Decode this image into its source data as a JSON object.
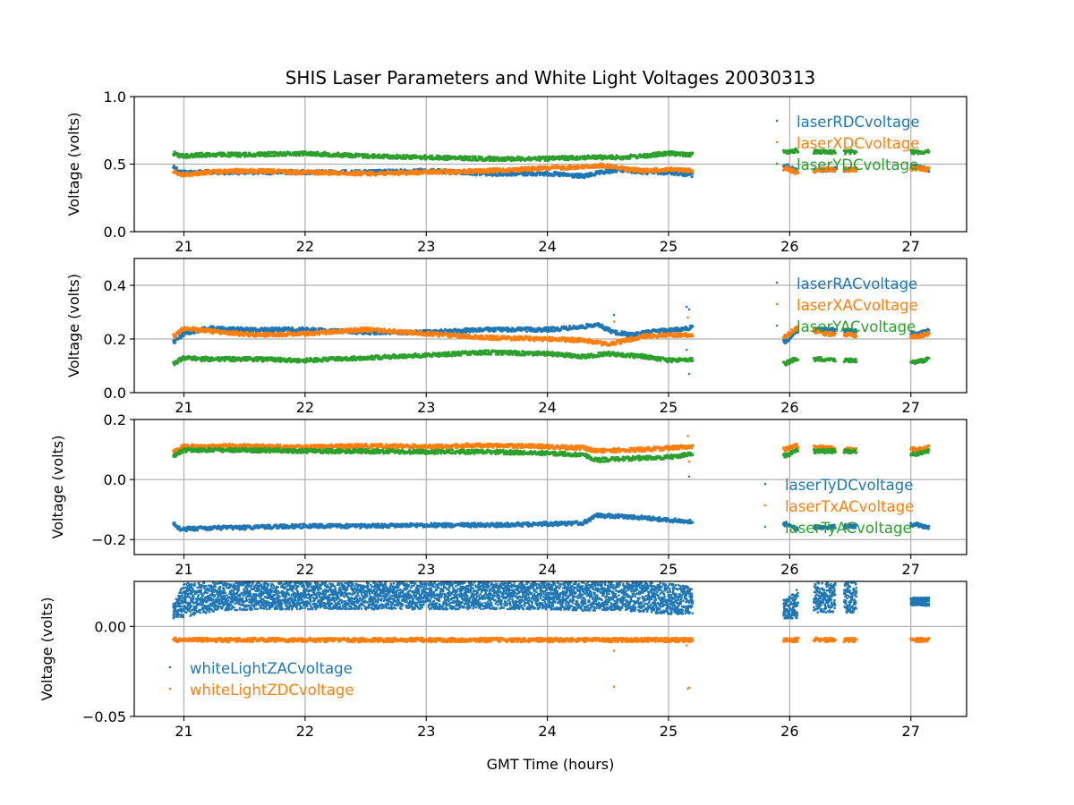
{
  "chart_data": {
    "type": "scatter",
    "title": "SHIS Laser Parameters and White Light Voltages 20030313",
    "xlabel": "GMT Time (hours)",
    "xlim": [
      20.59,
      27.46
    ],
    "xticks": [
      21,
      22,
      23,
      24,
      25,
      26,
      27
    ],
    "xtick_labels": [
      "21",
      "22",
      "23",
      "24",
      "25",
      "26",
      "27"
    ],
    "grid": true,
    "data_segments_hours": [
      [
        20.9,
        25.2
      ],
      [
        25.95,
        26.07
      ],
      [
        26.2,
        26.38
      ],
      [
        26.45,
        26.55
      ],
      [
        27.0,
        27.15
      ]
    ],
    "panels": [
      {
        "ylabel": "Voltage (volts)",
        "ylim": [
          0.0,
          1.0
        ],
        "yticks": [
          0.0,
          0.5,
          1.0
        ],
        "ytick_labels": [
          "0.0",
          "0.5",
          "1.0"
        ],
        "legend_position": "upper-right",
        "series": [
          {
            "name": "laserRDCvoltage",
            "color": "#1f77b4",
            "x": [
              20.92,
              20.97,
              21.2,
              21.5,
              22.0,
              22.5,
              23.0,
              23.5,
              24.0,
              24.3,
              24.4,
              24.6,
              24.8,
              25.0,
              25.2,
              25.97,
              26.05,
              26.3,
              26.5,
              27.05,
              27.15
            ],
            "y": [
              0.48,
              0.44,
              0.44,
              0.44,
              0.44,
              0.44,
              0.45,
              0.43,
              0.43,
              0.41,
              0.43,
              0.46,
              0.44,
              0.44,
              0.42,
              0.49,
              0.45,
              0.46,
              0.46,
              0.48,
              0.46
            ]
          },
          {
            "name": "laserXDCvoltage",
            "color": "#ff7f0e",
            "x": [
              20.92,
              20.97,
              21.2,
              21.5,
              22.0,
              22.5,
              23.0,
              23.5,
              24.0,
              24.3,
              24.45,
              24.6,
              24.8,
              25.0,
              25.2,
              25.97,
              26.05,
              26.3,
              26.5,
              27.05,
              27.15
            ],
            "y": [
              0.45,
              0.42,
              0.44,
              0.45,
              0.44,
              0.43,
              0.44,
              0.45,
              0.47,
              0.48,
              0.49,
              0.47,
              0.45,
              0.46,
              0.45,
              0.47,
              0.44,
              0.46,
              0.46,
              0.47,
              0.46
            ]
          },
          {
            "name": "laserYDCvoltage",
            "color": "#2ca02c",
            "x": [
              20.92,
              20.97,
              21.2,
              21.5,
              22.0,
              22.5,
              23.0,
              23.5,
              24.0,
              24.3,
              24.6,
              24.8,
              25.0,
              25.2,
              25.97,
              26.05,
              26.3,
              26.5,
              27.05,
              27.15
            ],
            "y": [
              0.58,
              0.56,
              0.57,
              0.57,
              0.58,
              0.56,
              0.55,
              0.54,
              0.54,
              0.55,
              0.55,
              0.56,
              0.58,
              0.57,
              0.59,
              0.6,
              0.59,
              0.59,
              0.59,
              0.59
            ]
          }
        ]
      },
      {
        "ylabel": "Voltage (volts)",
        "ylim": [
          0.0,
          0.5
        ],
        "yticks": [
          0.0,
          0.2,
          0.4
        ],
        "ytick_labels": [
          "0.0",
          "0.2",
          "0.4"
        ],
        "legend_position": "upper-right",
        "series": [
          {
            "name": "laserRACvoltage",
            "color": "#1f77b4",
            "x": [
              20.92,
              21.0,
              21.2,
              21.5,
              22.0,
              22.5,
              23.0,
              23.5,
              24.0,
              24.3,
              24.4,
              24.55,
              24.7,
              24.9,
              25.1,
              25.2,
              25.97,
              26.05,
              26.3,
              26.5,
              27.05,
              27.15
            ],
            "y": [
              0.19,
              0.22,
              0.24,
              0.235,
              0.235,
              0.225,
              0.225,
              0.235,
              0.235,
              0.245,
              0.255,
              0.225,
              0.215,
              0.23,
              0.235,
              0.245,
              0.19,
              0.23,
              0.235,
              0.23,
              0.22,
              0.23
            ],
            "outliers": [
              {
                "x": 24.55,
                "y": 0.29
              },
              {
                "x": 25.15,
                "y": 0.32
              },
              {
                "x": 25.17,
                "y": 0.31
              }
            ]
          },
          {
            "name": "laserXACvoltage",
            "color": "#ff7f0e",
            "x": [
              20.92,
              21.0,
              21.3,
              21.6,
              22.0,
              22.5,
              23.0,
              23.5,
              24.0,
              24.3,
              24.5,
              24.6,
              24.8,
              25.0,
              25.2,
              25.97,
              26.05,
              26.3,
              26.5,
              27.05,
              27.15
            ],
            "y": [
              0.21,
              0.24,
              0.225,
              0.215,
              0.22,
              0.235,
              0.22,
              0.205,
              0.2,
              0.195,
              0.18,
              0.19,
              0.21,
              0.215,
              0.215,
              0.21,
              0.24,
              0.22,
              0.215,
              0.21,
              0.22
            ],
            "outliers": [
              {
                "x": 24.55,
                "y": 0.265
              },
              {
                "x": 25.16,
                "y": 0.28
              }
            ]
          },
          {
            "name": "laserYACvoltage",
            "color": "#2ca02c",
            "x": [
              20.92,
              21.0,
              21.2,
              21.6,
              22.0,
              22.5,
              23.0,
              23.5,
              24.0,
              24.3,
              24.5,
              24.8,
              25.0,
              25.2,
              25.97,
              26.05,
              26.3,
              26.5,
              27.05,
              27.15
            ],
            "y": [
              0.11,
              0.13,
              0.125,
              0.125,
              0.12,
              0.13,
              0.14,
              0.15,
              0.145,
              0.135,
              0.145,
              0.135,
              0.12,
              0.125,
              0.11,
              0.125,
              0.125,
              0.12,
              0.115,
              0.125
            ],
            "outliers": [
              {
                "x": 25.15,
                "y": 0.16
              },
              {
                "x": 25.17,
                "y": 0.07
              }
            ]
          }
        ]
      },
      {
        "ylabel": "Voltage (volts)",
        "ylim": [
          -0.25,
          0.2
        ],
        "yticks": [
          -0.2,
          0.0,
          0.2
        ],
        "ytick_labels": [
          "−0.2",
          "0.0",
          "0.2"
        ],
        "legend_position": "lower-right",
        "series": [
          {
            "name": "laserTyDCvoltage",
            "color": "#1f77b4",
            "x": [
              20.92,
              20.97,
              21.2,
              21.5,
              22.0,
              22.5,
              23.0,
              23.5,
              24.0,
              24.3,
              24.4,
              24.6,
              24.8,
              25.0,
              25.2,
              25.97,
              26.05,
              26.3,
              26.5,
              27.05,
              27.15
            ],
            "y": [
              -0.15,
              -0.165,
              -0.162,
              -0.16,
              -0.155,
              -0.155,
              -0.152,
              -0.152,
              -0.148,
              -0.145,
              -0.12,
              -0.122,
              -0.128,
              -0.135,
              -0.142,
              -0.148,
              -0.162,
              -0.158,
              -0.155,
              -0.15,
              -0.162
            ]
          },
          {
            "name": "laserTxACvoltage",
            "color": "#ff7f0e",
            "x": [
              20.92,
              21.0,
              21.5,
              22.0,
              22.5,
              23.0,
              23.5,
              24.0,
              24.3,
              24.4,
              24.6,
              24.8,
              25.0,
              25.2,
              25.97,
              26.05,
              26.3,
              26.5,
              27.05,
              27.15
            ],
            "y": [
              0.095,
              0.11,
              0.112,
              0.108,
              0.112,
              0.11,
              0.114,
              0.11,
              0.105,
              0.095,
              0.098,
              0.1,
              0.105,
              0.11,
              0.1,
              0.112,
              0.105,
              0.1,
              0.1,
              0.108
            ],
            "outliers": [
              {
                "x": 25.16,
                "y": 0.145
              },
              {
                "x": 25.17,
                "y": 0.06
              }
            ]
          },
          {
            "name": "laserTyACvoltage",
            "color": "#2ca02c",
            "x": [
              20.92,
              21.0,
              21.5,
              22.0,
              22.5,
              23.0,
              23.5,
              24.0,
              24.3,
              24.4,
              24.6,
              24.8,
              25.0,
              25.2,
              25.97,
              26.05,
              26.3,
              26.5,
              27.05,
              27.15
            ],
            "y": [
              0.08,
              0.098,
              0.098,
              0.095,
              0.094,
              0.092,
              0.092,
              0.088,
              0.082,
              0.065,
              0.068,
              0.072,
              0.075,
              0.085,
              0.08,
              0.095,
              0.094,
              0.094,
              0.085,
              0.095
            ],
            "outliers": [
              {
                "x": 25.17,
                "y": 0.01
              }
            ]
          }
        ]
      },
      {
        "ylabel": "Voltage (volts)",
        "ylim": [
          -0.05,
          0.025
        ],
        "yticks": [
          -0.05,
          0.0
        ],
        "ytick_labels": [
          "−0.05",
          "0.00"
        ],
        "legend_position": "lower-left",
        "series": [
          {
            "name": "whiteLightZACvoltage",
            "color": "#1f77b4",
            "band": true,
            "x": [
              20.92,
              21.0,
              21.3,
              22.0,
              23.0,
              24.0,
              24.3,
              24.5,
              24.8,
              25.0,
              25.2,
              25.97,
              26.07,
              26.2,
              26.38,
              26.45,
              26.55,
              27.0,
              27.15
            ],
            "y_low": [
              0.004,
              0.005,
              0.009,
              0.0095,
              0.0095,
              0.0095,
              0.0085,
              0.009,
              0.008,
              0.0065,
              0.007,
              0.0035,
              0.004,
              0.0075,
              0.0075,
              0.0075,
              0.0075,
              0.0115,
              0.0115
            ],
            "y_high": [
              0.013,
              0.024,
              0.0245,
              0.0245,
              0.0245,
              0.0245,
              0.0245,
              0.0245,
              0.0245,
              0.024,
              0.022,
              0.015,
              0.0215,
              0.0245,
              0.0245,
              0.0245,
              0.0245,
              0.016,
              0.016
            ]
          },
          {
            "name": "whiteLightZDCvoltage",
            "color": "#ff7f0e",
            "x": [
              20.92,
              21.5,
              22.0,
              23.0,
              24.0,
              24.5,
              25.0,
              25.2,
              25.97,
              26.07,
              26.2,
              26.38,
              26.45,
              26.55,
              27.0,
              27.15
            ],
            "y": [
              -0.0075,
              -0.0075,
              -0.0075,
              -0.0075,
              -0.0075,
              -0.0075,
              -0.0075,
              -0.0075,
              -0.0075,
              -0.0075,
              -0.0075,
              -0.0075,
              -0.0075,
              -0.0075,
              -0.0075,
              -0.0075
            ],
            "outliers": [
              {
                "x": 24.55,
                "y": -0.0135
              },
              {
                "x": 24.55,
                "y": -0.0335
              },
              {
                "x": 25.15,
                "y": -0.0105
              },
              {
                "x": 25.16,
                "y": -0.0345
              },
              {
                "x": 25.17,
                "y": -0.034
              }
            ]
          }
        ]
      }
    ]
  }
}
